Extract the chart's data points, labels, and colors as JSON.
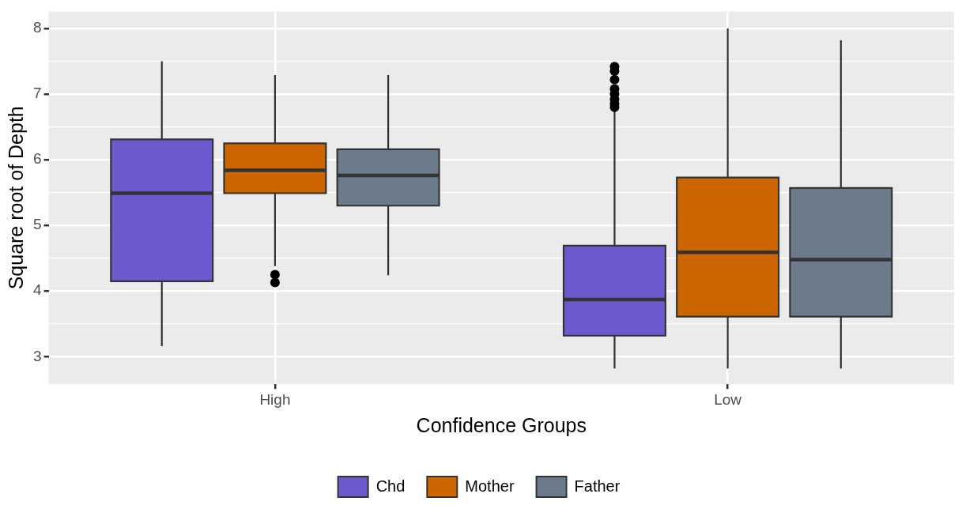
{
  "chart_data": {
    "type": "box",
    "xlabel": "Confidence Groups",
    "ylabel": "Square root of Depth",
    "categories": [
      "High",
      "Low"
    ],
    "series": [
      {
        "name": "Chd",
        "color": "#6a5acd",
        "boxes": [
          {
            "low": 3.16,
            "q1": 4.15,
            "median": 5.49,
            "q3": 6.31,
            "high": 7.5
          },
          {
            "low": 2.82,
            "q1": 3.32,
            "median": 3.87,
            "q3": 4.69,
            "high": 6.75,
            "outliers": [
              6.8,
              6.85,
              6.92,
              7.0,
              7.08,
              7.22,
              7.35,
              7.42
            ]
          }
        ]
      },
      {
        "name": "Mother",
        "color": "#cd6600",
        "boxes": [
          {
            "low": 4.38,
            "q1": 5.49,
            "median": 5.84,
            "q3": 6.25,
            "high": 7.29,
            "outliers": [
              4.13,
              4.25
            ]
          },
          {
            "low": 2.82,
            "q1": 3.61,
            "median": 4.59,
            "q3": 5.73,
            "high": 8.0
          }
        ]
      },
      {
        "name": "Father",
        "color": "#6c7b8b",
        "boxes": [
          {
            "low": 4.24,
            "q1": 5.3,
            "median": 5.76,
            "q3": 6.16,
            "high": 7.29
          },
          {
            "low": 2.82,
            "q1": 3.61,
            "median": 4.48,
            "q3": 5.57,
            "high": 7.82
          }
        ]
      }
    ],
    "ylim": [
      2.58,
      8.26
    ],
    "yticks": [
      3,
      {
        "value": 3.5,
        "label": null
      },
      4,
      {
        "value": 4.5,
        "label": null
      },
      5,
      {
        "value": 5.5,
        "label": null
      },
      6,
      {
        "value": 6.5,
        "label": null
      },
      7,
      {
        "value": 7.5,
        "label": null
      },
      8
    ],
    "grid": true,
    "legend": "bottom"
  }
}
